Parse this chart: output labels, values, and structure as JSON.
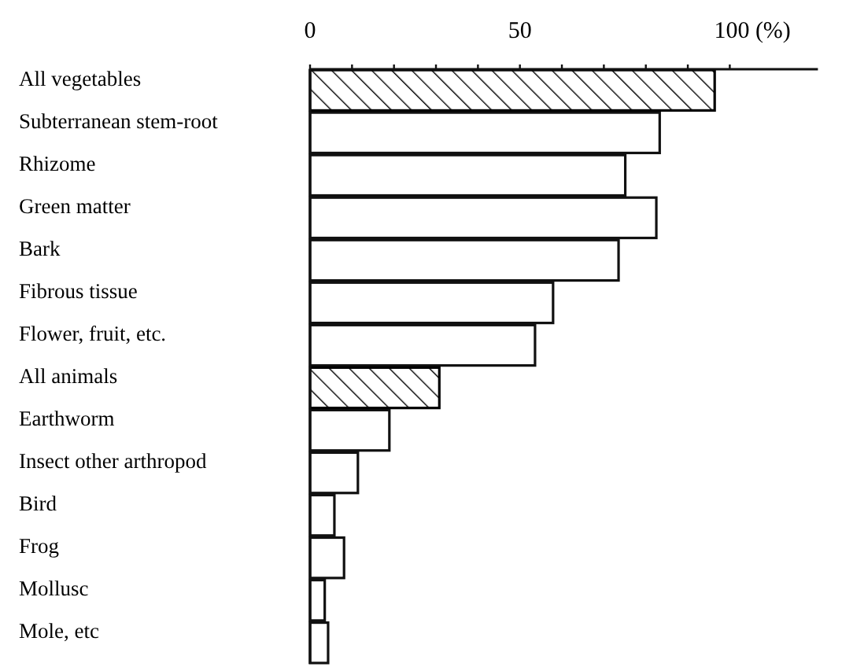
{
  "chart_data": {
    "type": "bar",
    "orientation": "horizontal",
    "categories": [
      "All vegetables",
      "Subterranean stem-root",
      "Rhizome",
      "Green matter",
      "Bark",
      "Fibrous tissue",
      "Flower, fruit, etc.",
      "All animals",
      "Earthworm",
      "Insect other arthropod",
      "Bird",
      "Frog",
      "Mollusc",
      "Mole, etc"
    ],
    "series": [
      {
        "color": "#ffffff",
        "values": [
          null,
          83.3,
          75.1,
          82.5,
          73.5,
          57.9,
          53.6,
          null,
          18.9,
          11.4,
          5.8,
          8.1,
          3.5,
          4.3
        ]
      },
      {
        "color": "#000000",
        "values": [
          96.4,
          null,
          null,
          null,
          null,
          null,
          null,
          30.8,
          null,
          null,
          null,
          null,
          null,
          null
        ]
      }
    ],
    "xlim": [
      0,
      121
    ],
    "xticks": [
      0,
      {
        "value": 10,
        "label": null
      },
      {
        "value": 20,
        "label": null
      },
      {
        "value": 30,
        "label": null
      },
      {
        "value": 40,
        "label": null
      },
      50,
      {
        "value": 60,
        "label": null
      },
      {
        "value": 70,
        "label": null
      },
      {
        "value": 80,
        "label": null
      },
      {
        "value": 90,
        "label": null
      },
      {
        "value": 100,
        "label": "100 (%)"
      }
    ],
    "grid": false
  }
}
